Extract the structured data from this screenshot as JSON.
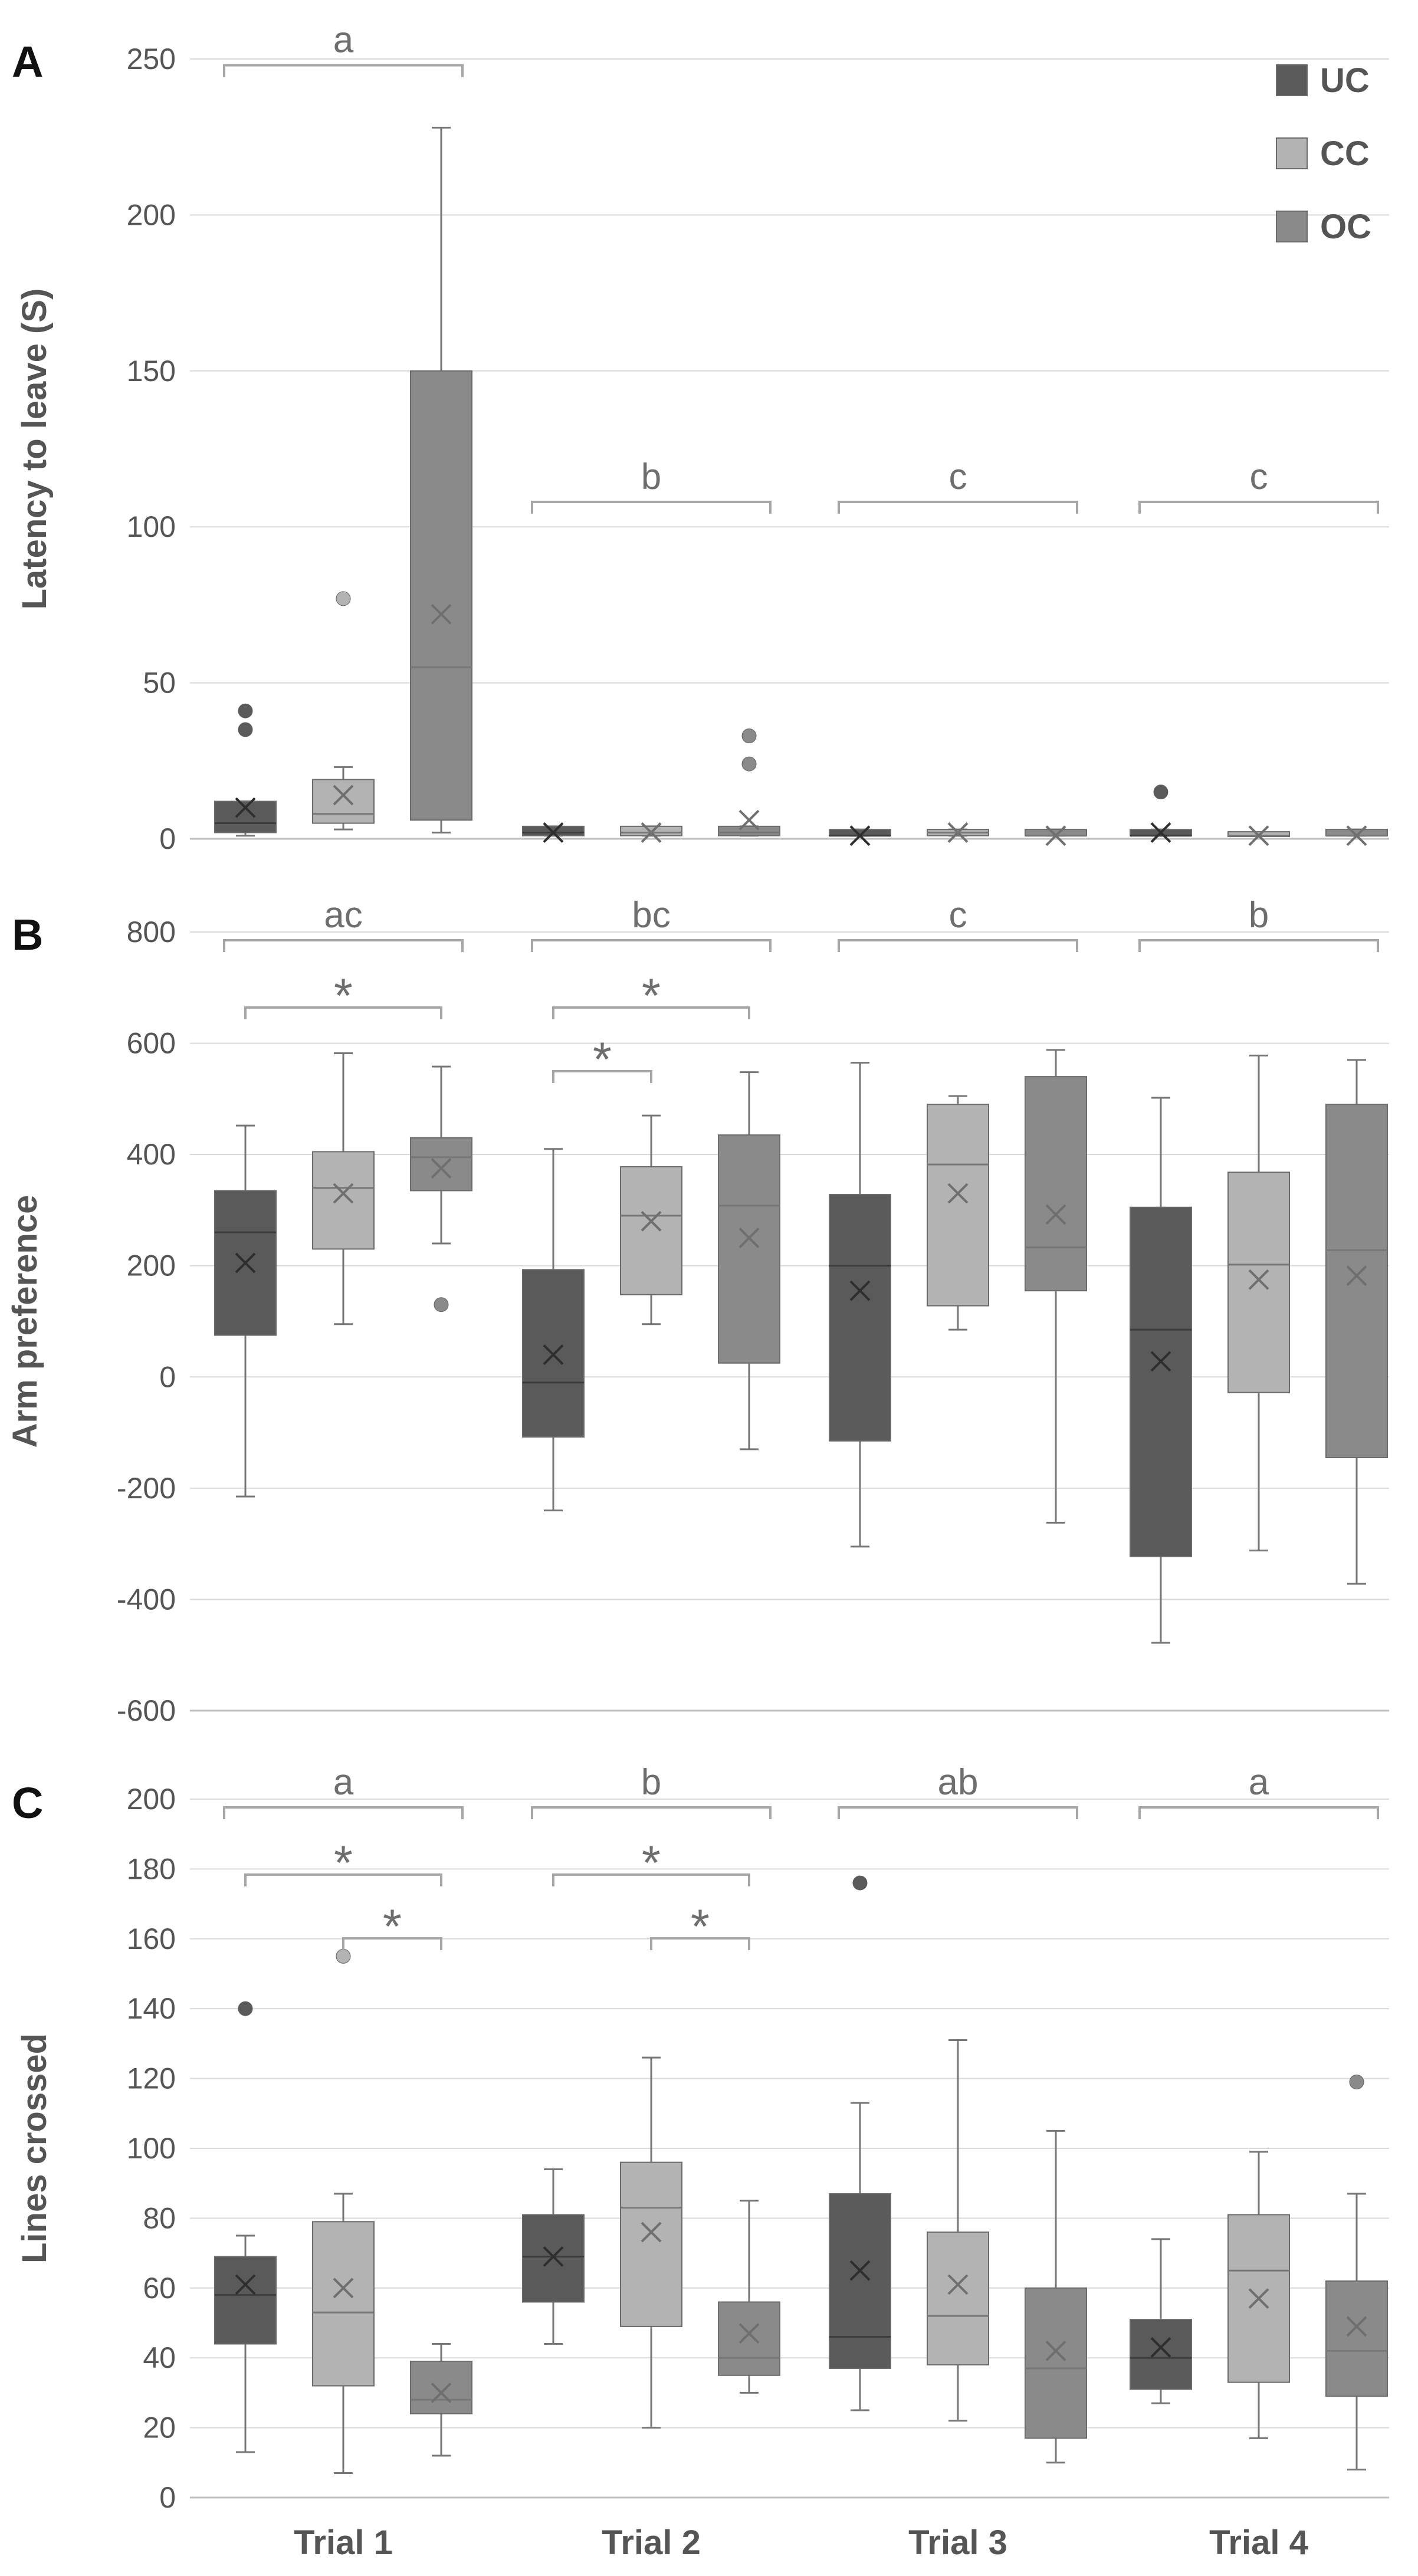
{
  "colors": {
    "UC": "#5a5a5a",
    "CC": "#b3b3b3",
    "OC": "#8a8a8a",
    "grid": "#d9d9d9",
    "whisker": "#767676",
    "bracket": "#a6a6a6",
    "text": "#555555"
  },
  "legend": [
    "UC",
    "CC",
    "OC"
  ],
  "categories": [
    "Trial 1",
    "Trial 2",
    "Trial 3",
    "Trial 4"
  ],
  "chart_data": [
    {
      "type": "box",
      "panel": "A",
      "ylabel": "Latency to leave (S)",
      "ylim": [
        0,
        250
      ],
      "yticks": [
        0,
        50,
        100,
        150,
        200,
        250
      ],
      "series": [
        {
          "name": "UC",
          "boxes": [
            {
              "min": 1,
              "q1": 2,
              "median": 5,
              "q3": 12,
              "max": 12,
              "mean": 10,
              "outliers": [
                35,
                41
              ]
            },
            {
              "min": 1,
              "q1": 1,
              "median": 2,
              "q3": 4,
              "max": 4,
              "mean": 2,
              "outliers": []
            },
            {
              "min": 1,
              "q1": 1,
              "median": 1,
              "q3": 3,
              "max": 3,
              "mean": 1,
              "outliers": []
            },
            {
              "min": 1,
              "q1": 1,
              "median": 1,
              "q3": 3,
              "max": 3,
              "mean": 2,
              "outliers": [
                15
              ]
            }
          ]
        },
        {
          "name": "CC",
          "boxes": [
            {
              "min": 3,
              "q1": 5,
              "median": 8,
              "q3": 19,
              "max": 23,
              "mean": 14,
              "outliers": [
                77
              ]
            },
            {
              "min": 1,
              "q1": 1,
              "median": 2,
              "q3": 4,
              "max": 4,
              "mean": 2,
              "outliers": []
            },
            {
              "min": 1,
              "q1": 1,
              "median": 2,
              "q3": 3,
              "max": 3,
              "mean": 2,
              "outliers": []
            },
            {
              "min": 1,
              "q1": 1,
              "median": 1,
              "q3": 2,
              "max": 2,
              "mean": 1,
              "outliers": []
            }
          ]
        },
        {
          "name": "OC",
          "boxes": [
            {
              "min": 2,
              "q1": 6,
              "median": 55,
              "q3": 150,
              "max": 228,
              "mean": 72,
              "outliers": []
            },
            {
              "min": 1,
              "q1": 1,
              "median": 2,
              "q3": 4,
              "max": 4,
              "mean": 6,
              "outliers": [
                24,
                33
              ]
            },
            {
              "min": 1,
              "q1": 1,
              "median": 1,
              "q3": 3,
              "max": 3,
              "mean": 1,
              "outliers": []
            },
            {
              "min": 1,
              "q1": 1,
              "median": 1,
              "q3": 3,
              "max": 3,
              "mean": 1,
              "outliers": []
            }
          ]
        }
      ],
      "group_labels": [
        "a",
        "b",
        "c",
        "c"
      ],
      "pairwise": []
    },
    {
      "type": "box",
      "panel": "B",
      "ylabel": "Arm preference",
      "ylim": [
        -600,
        800
      ],
      "yticks": [
        -600,
        -400,
        -200,
        0,
        200,
        400,
        600,
        800
      ],
      "series": [
        {
          "name": "UC",
          "boxes": [
            {
              "min": -215,
              "q1": 75,
              "median": 260,
              "q3": 335,
              "max": 452,
              "mean": 205,
              "outliers": []
            },
            {
              "min": -240,
              "q1": -108,
              "median": -10,
              "q3": 193,
              "max": 410,
              "mean": 40,
              "outliers": []
            },
            {
              "min": -305,
              "q1": -115,
              "median": 200,
              "q3": 328,
              "max": 565,
              "mean": 155,
              "outliers": []
            },
            {
              "min": -478,
              "q1": -323,
              "median": 85,
              "q3": 305,
              "max": 502,
              "mean": 28,
              "outliers": []
            }
          ]
        },
        {
          "name": "CC",
          "boxes": [
            {
              "min": 95,
              "q1": 230,
              "median": 340,
              "q3": 405,
              "max": 582,
              "mean": 330,
              "outliers": []
            },
            {
              "min": 95,
              "q1": 148,
              "median": 290,
              "q3": 378,
              "max": 470,
              "mean": 280,
              "outliers": []
            },
            {
              "min": 85,
              "q1": 128,
              "median": 382,
              "q3": 490,
              "max": 505,
              "mean": 330,
              "outliers": []
            },
            {
              "min": -312,
              "q1": -28,
              "median": 202,
              "q3": 368,
              "max": 578,
              "mean": 175,
              "outliers": []
            }
          ]
        },
        {
          "name": "OC",
          "boxes": [
            {
              "min": 240,
              "q1": 335,
              "median": 395,
              "q3": 430,
              "max": 558,
              "mean": 375,
              "outliers": [
                130
              ]
            },
            {
              "min": -130,
              "q1": 25,
              "median": 308,
              "q3": 435,
              "max": 548,
              "mean": 250,
              "outliers": []
            },
            {
              "min": -262,
              "q1": 155,
              "median": 233,
              "q3": 540,
              "max": 588,
              "mean": 292,
              "outliers": []
            },
            {
              "min": -372,
              "q1": -145,
              "median": 228,
              "q3": 490,
              "max": 570,
              "mean": 182,
              "outliers": []
            }
          ]
        }
      ],
      "group_labels": [
        "ac",
        "bc",
        "c",
        "b"
      ],
      "pairwise": [
        {
          "trial": 0,
          "from": 0,
          "to": 2,
          "level": 0,
          "label": "*"
        },
        {
          "trial": 1,
          "from": 0,
          "to": 1,
          "level": 1,
          "label": "*"
        },
        {
          "trial": 1,
          "from": 0,
          "to": 2,
          "level": 0,
          "label": "*"
        }
      ]
    },
    {
      "type": "box",
      "panel": "C",
      "ylabel": "Lines crossed",
      "ylim": [
        0,
        200
      ],
      "yticks": [
        0,
        20,
        40,
        60,
        80,
        100,
        120,
        140,
        160,
        180,
        200
      ],
      "series": [
        {
          "name": "UC",
          "boxes": [
            {
              "min": 13,
              "q1": 44,
              "median": 58,
              "q3": 69,
              "max": 75,
              "mean": 61,
              "outliers": [
                140
              ]
            },
            {
              "min": 44,
              "q1": 56,
              "median": 69,
              "q3": 81,
              "max": 94,
              "mean": 69,
              "outliers": []
            },
            {
              "min": 25,
              "q1": 37,
              "median": 46,
              "q3": 87,
              "max": 113,
              "mean": 65,
              "outliers": [
                176
              ]
            },
            {
              "min": 27,
              "q1": 31,
              "median": 40,
              "q3": 51,
              "max": 74,
              "mean": 43,
              "outliers": []
            }
          ]
        },
        {
          "name": "CC",
          "boxes": [
            {
              "min": 7,
              "q1": 32,
              "median": 53,
              "q3": 79,
              "max": 87,
              "mean": 60,
              "outliers": [
                155
              ]
            },
            {
              "min": 20,
              "q1": 49,
              "median": 83,
              "q3": 96,
              "max": 126,
              "mean": 76,
              "outliers": []
            },
            {
              "min": 22,
              "q1": 38,
              "median": 52,
              "q3": 76,
              "max": 131,
              "mean": 61,
              "outliers": []
            },
            {
              "min": 17,
              "q1": 33,
              "median": 65,
              "q3": 81,
              "max": 99,
              "mean": 57,
              "outliers": []
            }
          ]
        },
        {
          "name": "OC",
          "boxes": [
            {
              "min": 12,
              "q1": 24,
              "median": 28,
              "q3": 39,
              "max": 44,
              "mean": 30,
              "outliers": []
            },
            {
              "min": 30,
              "q1": 35,
              "median": 40,
              "q3": 56,
              "max": 85,
              "mean": 47,
              "outliers": []
            },
            {
              "min": 10,
              "q1": 17,
              "median": 37,
              "q3": 60,
              "max": 105,
              "mean": 42,
              "outliers": []
            },
            {
              "min": 8,
              "q1": 29,
              "median": 42,
              "q3": 62,
              "max": 87,
              "mean": 49,
              "outliers": [
                119
              ]
            }
          ]
        }
      ],
      "group_labels": [
        "a",
        "b",
        "ab",
        "a"
      ],
      "pairwise": [
        {
          "trial": 0,
          "from": 0,
          "to": 2,
          "level": 0,
          "label": "*"
        },
        {
          "trial": 0,
          "from": 1,
          "to": 2,
          "level": 1,
          "label": "*"
        },
        {
          "trial": 1,
          "from": 0,
          "to": 2,
          "level": 0,
          "label": "*"
        },
        {
          "trial": 1,
          "from": 1,
          "to": 2,
          "level": 1,
          "label": "*"
        }
      ]
    }
  ]
}
